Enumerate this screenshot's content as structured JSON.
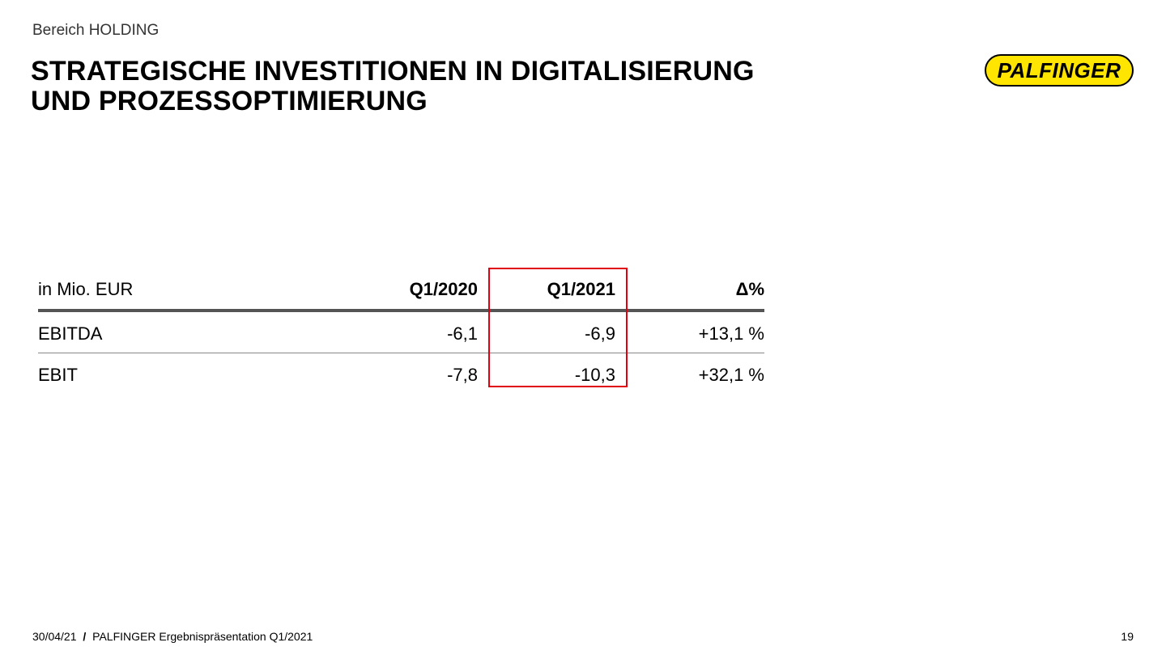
{
  "section": "Bereich HOLDING",
  "title_lines": [
    "STRATEGISCHE INVESTITIONEN IN DIGITALISIERUNG",
    "UND PROZESSOPTIMIERUNG"
  ],
  "logo_text": "PALFINGER",
  "table": {
    "headers": [
      "in Mio. EUR",
      "Q1/2020",
      "Q1/2021",
      "Δ%"
    ],
    "rows": [
      [
        "EBITDA",
        "-6,1",
        "-6,9",
        "+13,1 %"
      ],
      [
        "EBIT",
        "-7,8",
        "-10,3",
        "+32,1 %"
      ]
    ],
    "highlight_color": "#e0000f"
  },
  "footer": {
    "date": "30/04/21",
    "separator": "/",
    "text": "PALFINGER Ergebnispräsentation Q1/2021",
    "page_number": "19"
  },
  "colors": {
    "logo_fill": "#ffe500"
  }
}
